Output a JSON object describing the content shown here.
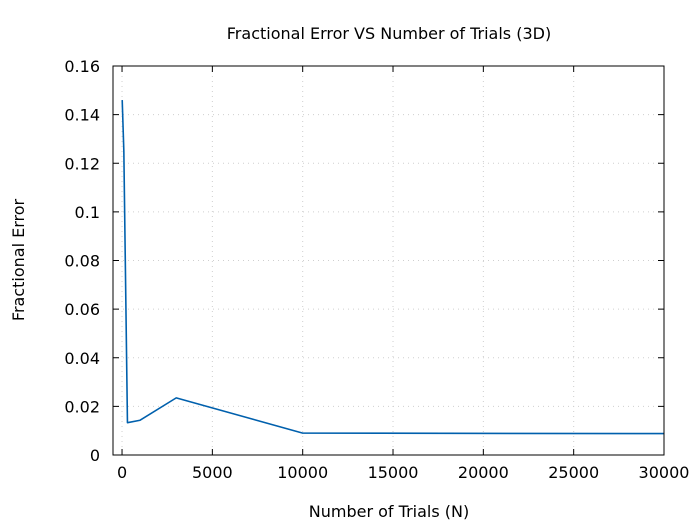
{
  "chart_data": {
    "type": "line",
    "title": "Fractional Error VS Number of Trials (3D)",
    "xlabel": "Number of Trials (N)",
    "ylabel": "Fractional Error",
    "xlim": [
      -500,
      30000
    ],
    "ylim": [
      0,
      0.16
    ],
    "x_ticks": [
      0,
      5000,
      10000,
      15000,
      20000,
      25000,
      30000
    ],
    "x_tick_labels": [
      "0",
      "5000",
      "10000",
      "15000",
      "20000",
      "25000",
      "30000"
    ],
    "y_ticks": [
      0,
      0.02,
      0.04,
      0.06,
      0.08,
      0.1,
      0.12,
      0.14,
      0.16
    ],
    "y_tick_labels": [
      "0",
      "0.02",
      "0.04",
      "0.06",
      "0.08",
      "0.1",
      "0.12",
      "0.14",
      "0.16"
    ],
    "grid": true,
    "series": [
      {
        "color": "#0060ad",
        "x": [
          10,
          100,
          300,
          1000,
          3000,
          10000,
          30000
        ],
        "y": [
          0.146,
          0.125,
          0.0133,
          0.0143,
          0.0235,
          0.009,
          0.0088
        ]
      }
    ]
  }
}
